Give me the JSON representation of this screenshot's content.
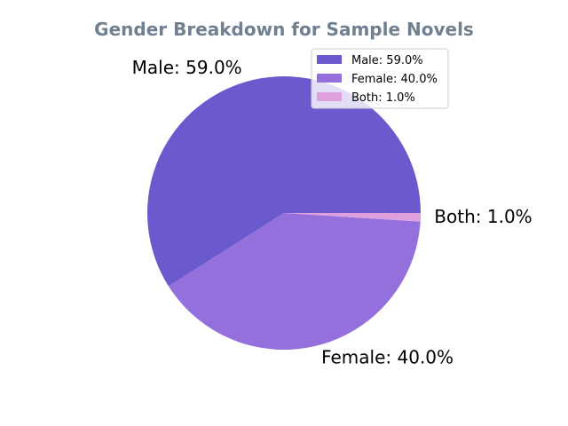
{
  "chart_data": {
    "type": "pie",
    "title": "Gender Breakdown for Sample Novels",
    "categories": [
      "Male",
      "Female",
      "Both"
    ],
    "values": [
      59.0,
      40.0,
      1.0
    ],
    "slice_labels": [
      "Male: 59.0%",
      "Female: 40.0%",
      "Both: 1.0%"
    ],
    "legend": {
      "placement": "upper-right",
      "entries": [
        "Male: 59.0%",
        "Female: 40.0%",
        "Both: 1.0%"
      ]
    },
    "colors": [
      "#6a5acd",
      "#9370db",
      "#dda0dd"
    ],
    "title_color": "#708090"
  }
}
